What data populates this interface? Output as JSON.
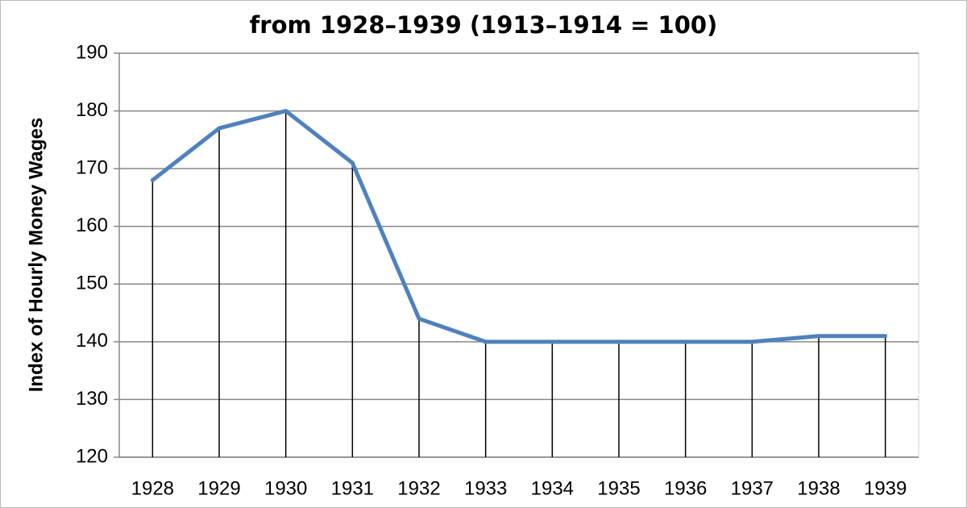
{
  "chart_data": {
    "type": "line",
    "title": "from 1928–1939 (1913–1914 = 100)",
    "y_label": "Index of  Hourly Money Wages",
    "categories": [
      "1928",
      "1929",
      "1930",
      "1931",
      "1932",
      "1933",
      "1934",
      "1935",
      "1936",
      "1937",
      "1938",
      "1939"
    ],
    "series": [
      {
        "name": "Index of Hourly Money Wages",
        "color": "#4f81bd",
        "values": [
          168,
          177,
          180,
          171,
          144,
          140,
          140,
          140,
          140,
          140,
          141,
          141
        ]
      }
    ],
    "ylim": [
      120,
      190
    ],
    "yticks": [
      120,
      130,
      140,
      150,
      160,
      170,
      180,
      190
    ],
    "grid": true,
    "drop_lines": true
  }
}
